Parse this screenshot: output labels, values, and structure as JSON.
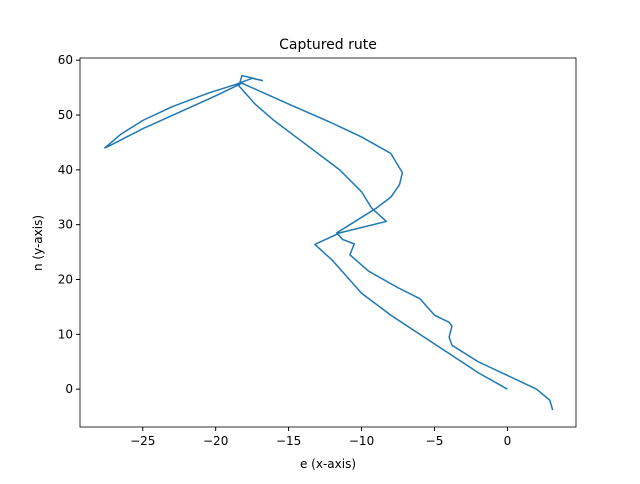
{
  "chart_data": {
    "type": "line",
    "title": "Captured rute",
    "x_label": "e (x-axis)",
    "y_label": "n (y-axis)",
    "xlim": [
      -29.3,
      4.7
    ],
    "ylim": [
      -6.9,
      60.4
    ],
    "xticks": [
      {
        "value": -25,
        "label": "−25"
      },
      {
        "value": -20,
        "label": "−20"
      },
      {
        "value": -15,
        "label": "−15"
      },
      {
        "value": -10,
        "label": "−10"
      },
      {
        "value": -5,
        "label": "−5"
      },
      0
    ],
    "yticks": [
      0,
      10,
      20,
      30,
      40,
      50,
      60
    ],
    "series": [
      {
        "color": "#1f77b4",
        "x": [
          0,
          -2,
          -4,
          -6,
          -8,
          -10,
          -11,
          -12,
          -13.2,
          -11.5,
          -8.3,
          -9.3,
          -10,
          -11.5,
          -13,
          -14.5,
          -16,
          -17.3,
          -18.4,
          -18.2,
          -16.8,
          -17.5,
          -18.6,
          -20.5,
          -23,
          -25,
          -26.5,
          -27.6,
          -27.2,
          -25,
          -22.5,
          -20,
          -18.2,
          -15,
          -12,
          -10,
          -8,
          -7.2,
          -7.4,
          -8,
          -9,
          -10.5,
          -11.7,
          -11.3,
          -10.5,
          -10.8,
          -9.5,
          -7.5,
          -6,
          -5,
          -4,
          -3.8,
          -4,
          -3.8,
          -2,
          0,
          2,
          2.9,
          3.1
        ],
        "y": [
          0,
          3,
          6.5,
          10,
          13.5,
          17.5,
          20.5,
          23.5,
          26.4,
          28.5,
          30.6,
          33,
          36,
          40,
          43,
          46,
          49,
          52,
          55.3,
          57.2,
          56.3,
          56.7,
          55.6,
          54,
          51.5,
          49,
          46.5,
          44,
          44.5,
          47.5,
          50.5,
          53.5,
          55.8,
          52,
          48.5,
          46,
          43,
          39.5,
          37.3,
          35,
          33,
          30.5,
          28.5,
          27.3,
          26.5,
          24.5,
          21.5,
          18.5,
          16.5,
          13.5,
          12.2,
          11.5,
          9.5,
          8,
          5,
          2.5,
          0,
          -2,
          -3.8
        ]
      }
    ]
  }
}
